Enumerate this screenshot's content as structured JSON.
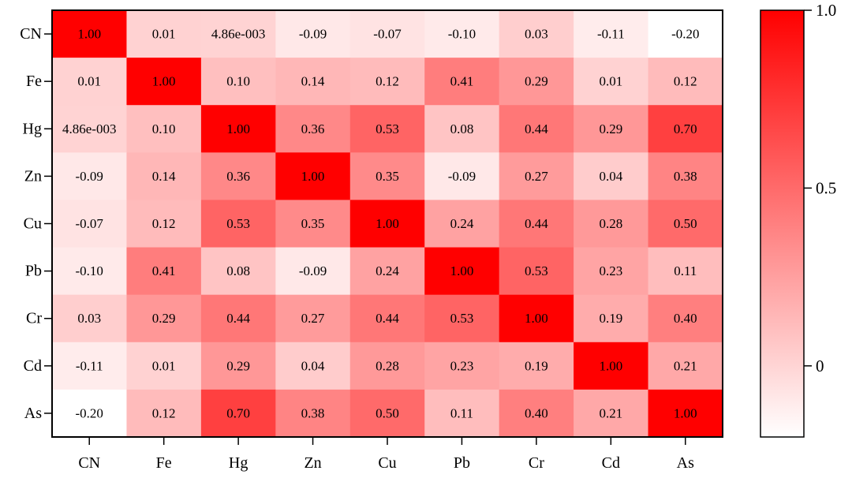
{
  "chart_data": {
    "type": "heatmap",
    "rows": [
      "CN",
      "Fe",
      "Hg",
      "Zn",
      "Cu",
      "Pb",
      "Cr",
      "Cd",
      "As"
    ],
    "columns": [
      "CN",
      "Fe",
      "Hg",
      "Zn",
      "Cu",
      "Pb",
      "Cr",
      "Cd",
      "As"
    ],
    "values": [
      [
        1.0,
        0.01,
        0.00486,
        -0.09,
        -0.07,
        -0.1,
        0.03,
        -0.11,
        -0.2
      ],
      [
        0.01,
        1.0,
        0.1,
        0.14,
        0.12,
        0.41,
        0.29,
        0.01,
        0.12
      ],
      [
        0.00486,
        0.1,
        1.0,
        0.36,
        0.53,
        0.08,
        0.44,
        0.29,
        0.7
      ],
      [
        -0.09,
        0.14,
        0.36,
        1.0,
        0.35,
        -0.09,
        0.27,
        0.04,
        0.38
      ],
      [
        -0.07,
        0.12,
        0.53,
        0.35,
        1.0,
        0.24,
        0.44,
        0.28,
        0.5
      ],
      [
        -0.1,
        0.41,
        0.08,
        -0.09,
        0.24,
        1.0,
        0.53,
        0.23,
        0.11
      ],
      [
        0.03,
        0.29,
        0.44,
        0.27,
        0.44,
        0.53,
        1.0,
        0.19,
        0.4
      ],
      [
        -0.11,
        0.01,
        0.29,
        0.04,
        0.28,
        0.23,
        0.19,
        1.0,
        0.21
      ],
      [
        -0.2,
        0.12,
        0.7,
        0.38,
        0.5,
        0.11,
        0.4,
        0.21,
        1.0
      ]
    ],
    "cell_labels": [
      [
        "1.00",
        "0.01",
        "4.86e-003",
        "-0.09",
        "-0.07",
        "-0.10",
        "0.03",
        "-0.11",
        "-0.20"
      ],
      [
        "0.01",
        "1.00",
        "0.10",
        "0.14",
        "0.12",
        "0.41",
        "0.29",
        "0.01",
        "0.12"
      ],
      [
        "4.86e-003",
        "0.10",
        "1.00",
        "0.36",
        "0.53",
        "0.08",
        "0.44",
        "0.29",
        "0.70"
      ],
      [
        "-0.09",
        "0.14",
        "0.36",
        "1.00",
        "0.35",
        "-0.09",
        "0.27",
        "0.04",
        "0.38"
      ],
      [
        "-0.07",
        "0.12",
        "0.53",
        "0.35",
        "1.00",
        "0.24",
        "0.44",
        "0.28",
        "0.50"
      ],
      [
        "-0.10",
        "0.41",
        "0.08",
        "-0.09",
        "0.24",
        "1.00",
        "0.53",
        "0.23",
        "0.11"
      ],
      [
        "0.03",
        "0.29",
        "0.44",
        "0.27",
        "0.44",
        "0.53",
        "1.00",
        "0.19",
        "0.40"
      ],
      [
        "-0.11",
        "0.01",
        "0.29",
        "0.04",
        "0.28",
        "0.23",
        "0.19",
        "1.00",
        "0.21"
      ],
      [
        "-0.20",
        "0.12",
        "0.70",
        "0.38",
        "0.50",
        "0.11",
        "0.40",
        "0.21",
        "1.00"
      ]
    ],
    "colorbar": {
      "range": [
        -0.2,
        1.0
      ],
      "ticks": [
        1.0,
        0.5,
        0
      ],
      "tick_labels": [
        "1.0",
        "0.5",
        "0"
      ],
      "color_low": "#ffffff",
      "color_high": "#ff0000"
    },
    "title": "",
    "xlabel": "",
    "ylabel": ""
  }
}
